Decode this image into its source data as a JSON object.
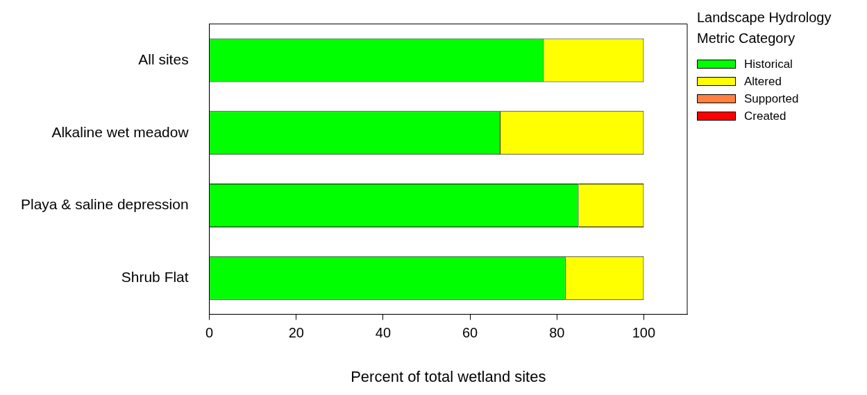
{
  "chart_data": {
    "type": "bar",
    "orientation": "horizontal",
    "stacked": true,
    "categories": [
      "All sites",
      "Alkaline wet meadow",
      "Playa & saline depression",
      "Shrub Flat"
    ],
    "xlabel": "Percent of total wetland sites",
    "legend_title": "Landscape Hydrology Metric Category",
    "legend": "right",
    "xlim": [
      0,
      110
    ],
    "xticks": [
      0,
      20,
      40,
      60,
      80,
      100
    ],
    "series": [
      {
        "name": "Historical",
        "color": "#00ff00",
        "values": [
          77,
          67,
          85,
          82
        ]
      },
      {
        "name": "Altered",
        "color": "#ffff00",
        "values": [
          23,
          33,
          15,
          18
        ]
      },
      {
        "name": "Supported",
        "color": "#ff8040",
        "values": [
          0,
          0,
          0,
          0
        ]
      },
      {
        "name": "Created",
        "color": "#ff0000",
        "values": [
          0,
          0,
          0,
          0
        ]
      }
    ]
  }
}
